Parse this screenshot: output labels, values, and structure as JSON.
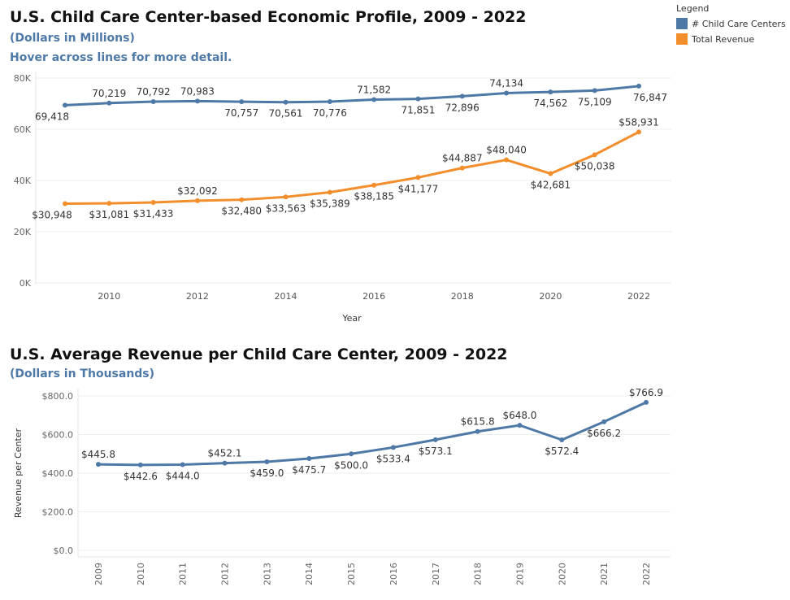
{
  "chart_data": [
    {
      "type": "line",
      "title": "U.S. Child Care Center-based Economic Profile, 2009 - 2022",
      "subtitle": "(Dollars in Millions)",
      "note": "Hover across lines for more detail.",
      "xlabel": "Year",
      "ylabel": "",
      "x": [
        2009,
        2010,
        2011,
        2012,
        2013,
        2014,
        2015,
        2016,
        2017,
        2018,
        2019,
        2020,
        2021,
        2022
      ],
      "x_ticks": [
        "2010",
        "2012",
        "2014",
        "2016",
        "2018",
        "2020",
        "2022"
      ],
      "y_ticks": [
        "0K",
        "20K",
        "40K",
        "60K",
        "80K"
      ],
      "ylim": [
        0,
        80000
      ],
      "grid": true,
      "legend_title": "Legend",
      "legend_position": "top-right",
      "series": [
        {
          "name": "# Child Care Centers",
          "color": "#4e79a7",
          "values": [
            69418,
            70219,
            70792,
            70983,
            70757,
            70561,
            70776,
            71582,
            71851,
            72896,
            74134,
            74562,
            75109,
            76847
          ],
          "labels": [
            "69,418",
            "70,219",
            "70,792",
            "70,983",
            "70,757",
            "70,561",
            "70,776",
            "71,582",
            "71,851",
            "72,896",
            "74,134",
            "74,562",
            "75,109",
            "76,847"
          ]
        },
        {
          "name": "Total Revenue",
          "color": "#f28e2b",
          "values": [
            30948,
            31081,
            31433,
            32092,
            32480,
            33563,
            35389,
            38185,
            41177,
            44887,
            48040,
            42681,
            50038,
            58931
          ],
          "labels": [
            "$30,948",
            "$31,081",
            "$31,433",
            "$32,092",
            "$32,480",
            "$33,563",
            "$35,389",
            "$38,185",
            "$41,177",
            "$44,887",
            "$48,040",
            "$42,681",
            "$50,038",
            "$58,931"
          ]
        }
      ]
    },
    {
      "type": "line",
      "title": "U.S. Average Revenue per Child Care Center, 2009 - 2022",
      "subtitle": "(Dollars in Thousands)",
      "xlabel": "",
      "ylabel": "Revenue per Center",
      "x": [
        2009,
        2010,
        2011,
        2012,
        2013,
        2014,
        2015,
        2016,
        2017,
        2018,
        2019,
        2020,
        2021,
        2022
      ],
      "x_ticks": [
        "2009",
        "2010",
        "2011",
        "2012",
        "2013",
        "2014",
        "2015",
        "2016",
        "2017",
        "2018",
        "2019",
        "2020",
        "2021",
        "2022"
      ],
      "y_ticks": [
        "$0.0",
        "$200.0",
        "$400.0",
        "$600.0",
        "$800.0"
      ],
      "ylim": [
        0,
        800
      ],
      "grid": true,
      "series": [
        {
          "name": "Revenue per Center",
          "color": "#4e79a7",
          "values": [
            445.8,
            442.6,
            444.0,
            452.1,
            459.0,
            475.7,
            500.0,
            533.4,
            573.1,
            615.8,
            648.0,
            572.4,
            666.2,
            766.9
          ],
          "labels": [
            "$445.8",
            "$442.6",
            "$444.0",
            "$452.1",
            "$459.0",
            "$475.7",
            "$500.0",
            "$533.4",
            "$573.1",
            "$615.8",
            "$648.0",
            "$572.4",
            "$666.2",
            "$766.9"
          ]
        }
      ]
    }
  ]
}
